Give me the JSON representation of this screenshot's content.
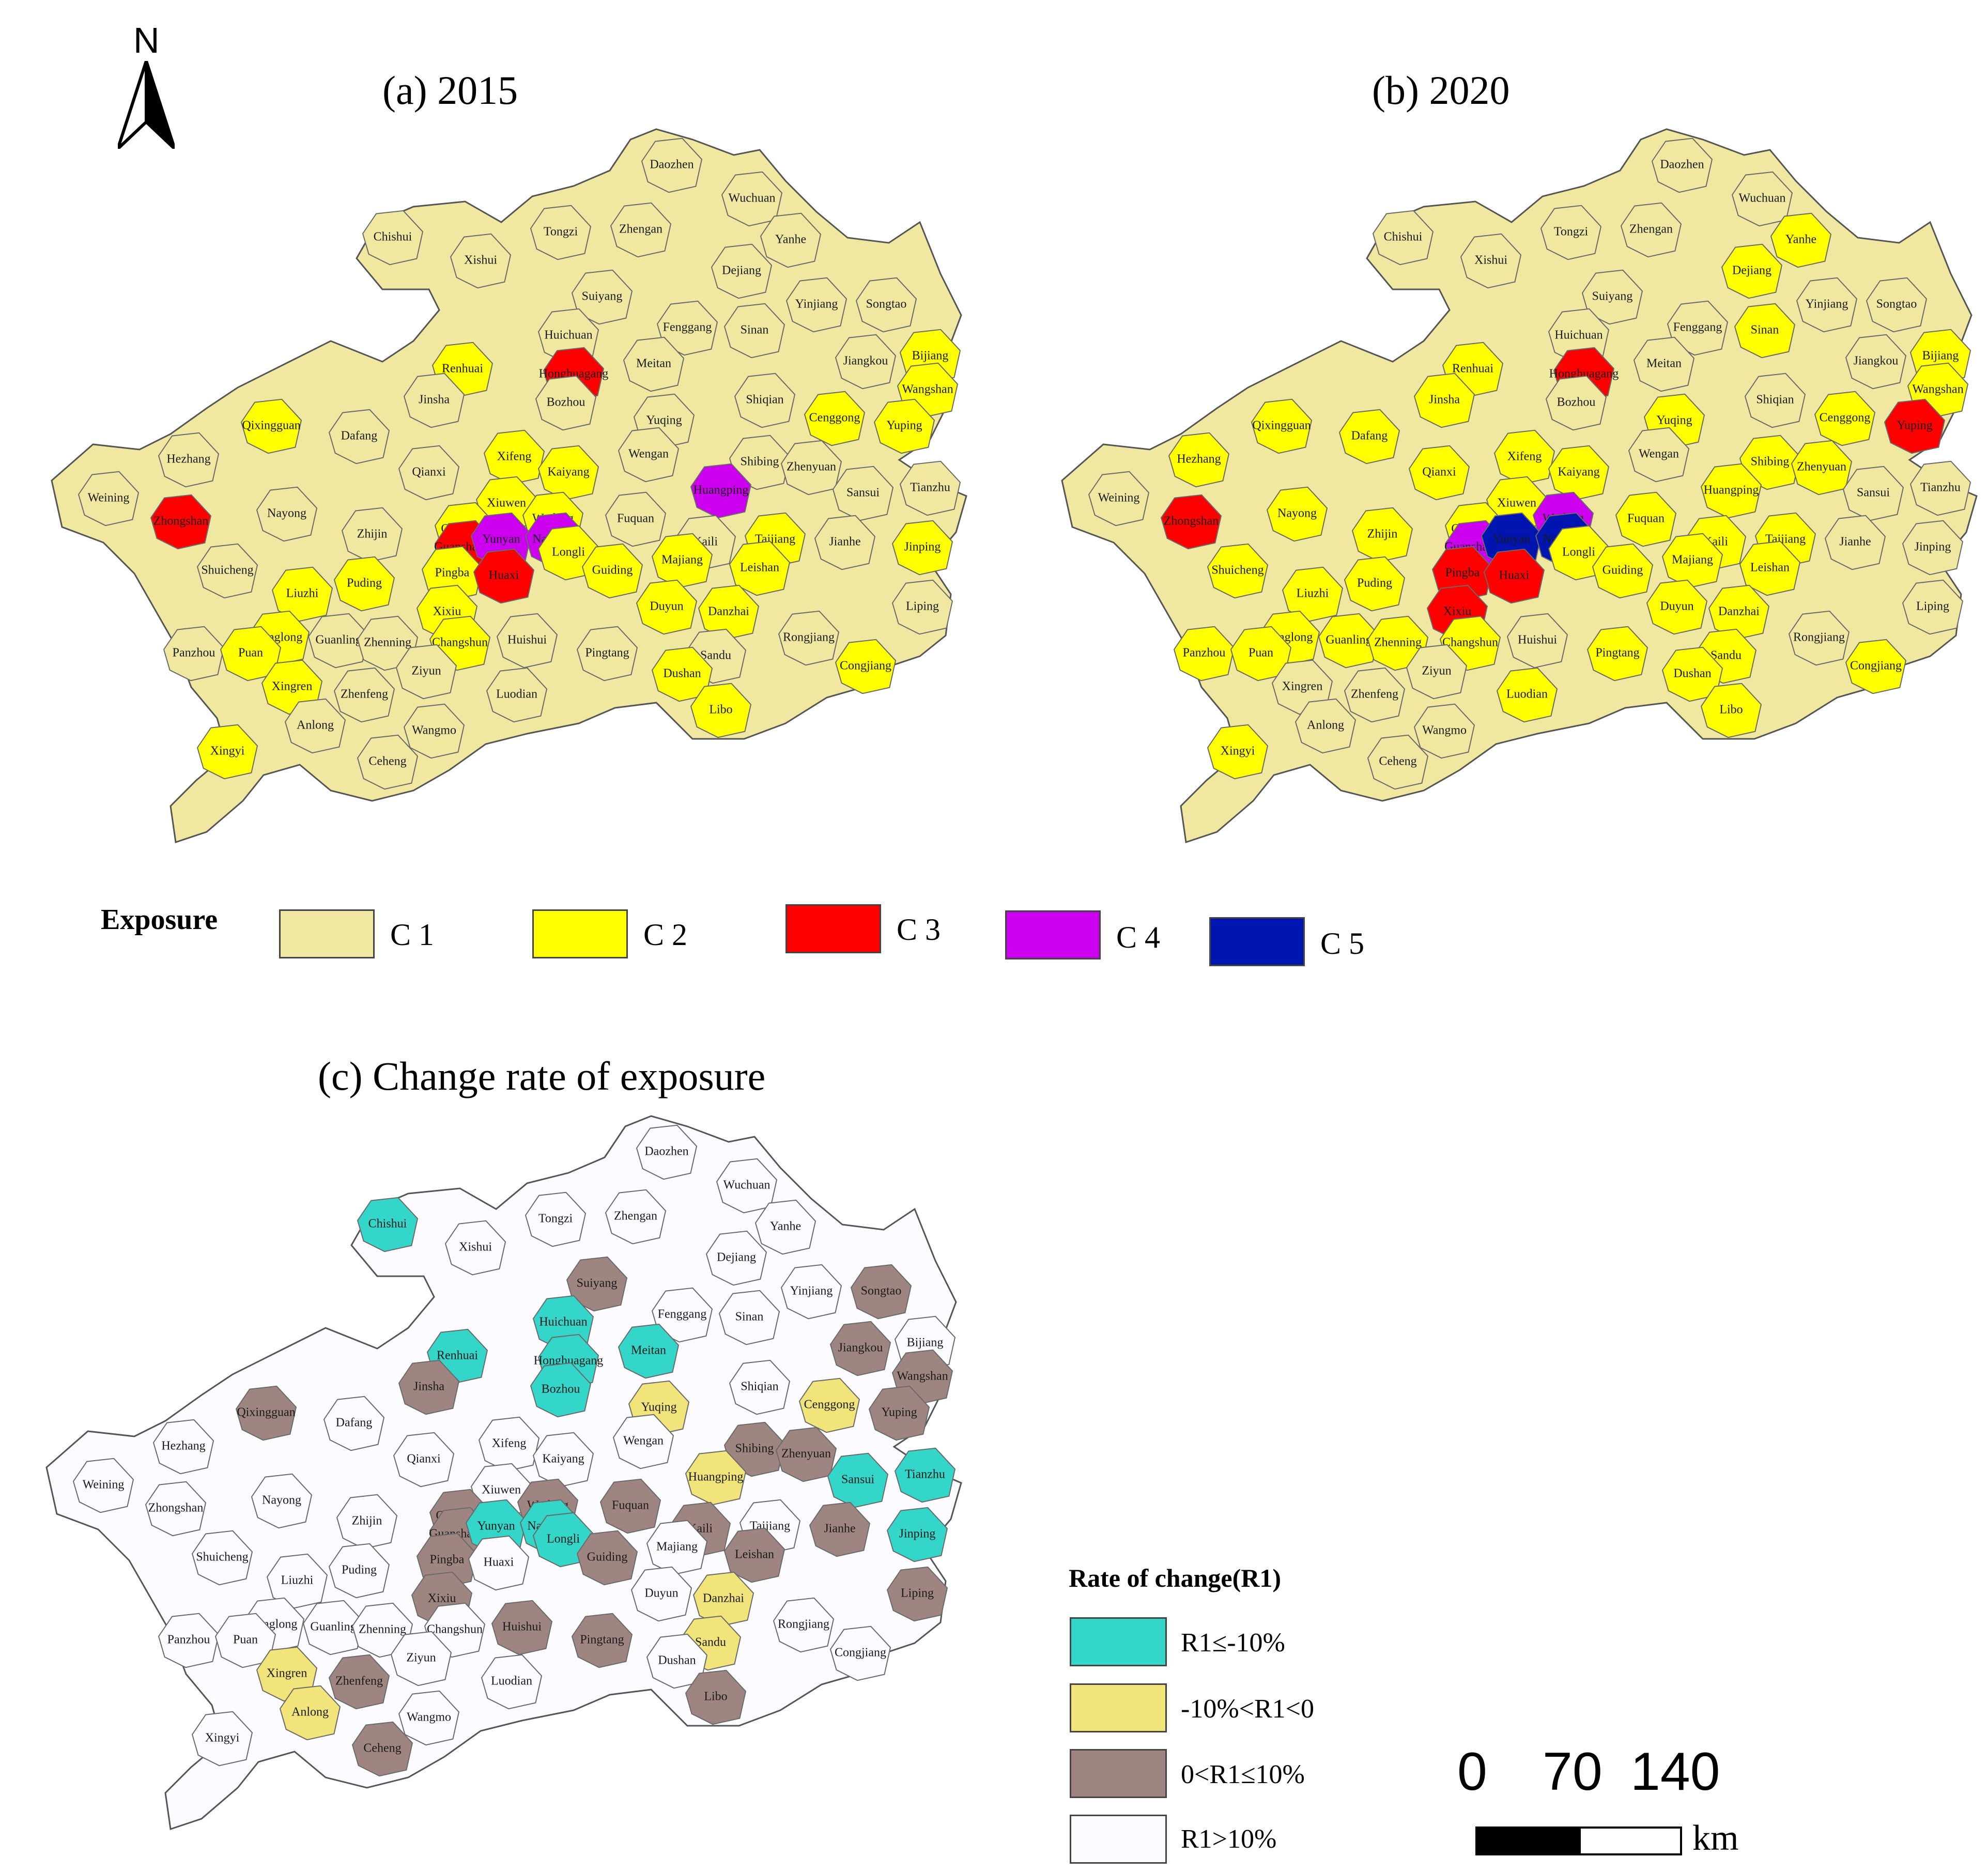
{
  "north_arrow": {
    "label": "N",
    "icon": "north-arrow-icon"
  },
  "maps": [
    {
      "id": "2015",
      "title": "(a) 2015"
    },
    {
      "id": "2020",
      "title": "(b) 2020"
    },
    {
      "id": "change",
      "title": "(c) Change rate of exposure"
    }
  ],
  "exposure_legend": {
    "title": "Exposure",
    "classes": [
      {
        "label": "C 1",
        "color": "#f0e8a0"
      },
      {
        "label": "C 2",
        "color": "#ffff00"
      },
      {
        "label": "C 3",
        "color": "#ff0000"
      },
      {
        "label": "C 4",
        "color": "#cc00ee"
      },
      {
        "label": "C 5",
        "color": "#0015b0"
      }
    ]
  },
  "change_legend": {
    "title": "Rate of change(R1)",
    "classes": [
      {
        "label": "R1≤-10%",
        "color": "#33d6c8"
      },
      {
        "label": "-10%<R1<0",
        "color": "#f0e47a"
      },
      {
        "label": "0<R1≤10%",
        "color": "#9e8582"
      },
      {
        "label": "R1>10%",
        "color": "#fcfbff"
      }
    ]
  },
  "scale_bar": {
    "ticks": [
      "0",
      "70",
      "140"
    ],
    "unit": "km"
  },
  "counties": [
    "Daozhen",
    "Wuchuan",
    "Chishui",
    "Xishui",
    "Tongzi",
    "Zhengan",
    "Yanhe",
    "Dejiang",
    "Suiyang",
    "Yinjiang",
    "Songtao",
    "Huichuan",
    "Fenggang",
    "Sinan",
    "Renhuai",
    "Honghuagang",
    "Meitan",
    "Jiangkou",
    "Bijiang",
    "Jinsha",
    "Bozhou",
    "Shiqian",
    "Wangshan",
    "Qixingguan",
    "Yuqing",
    "Cenggong",
    "Yuping",
    "Hezhang",
    "Dafang",
    "Xifeng",
    "Wengan",
    "Shibing",
    "Zhenyuan",
    "Weining",
    "Qianxi",
    "Kaiyang",
    "Huangping",
    "Sansui",
    "Tianzhu",
    "Nayong",
    "Xiuwen",
    "Wudang",
    "Fuquan",
    "Zhongshan",
    "Zhijin",
    "Qingzhen",
    "Guanshanhu",
    "Yunyan",
    "Nanming",
    "Longli",
    "Kaili",
    "Taijiang",
    "Jianhe",
    "Jinping",
    "Shuicheng",
    "Pingba",
    "Huaxi",
    "Xixiu",
    "Guiding",
    "Majiang",
    "Leishan",
    "Liuzhi",
    "Puding",
    "Duyun",
    "Danzhai",
    "Liping",
    "Changshun",
    "Huishui",
    "Rongjiang",
    "Panzhou",
    "Qinglong",
    "Guanling",
    "Zhenning",
    "Pingtang",
    "Sandu",
    "Congjiang",
    "Puan",
    "Ziyun",
    "Dushan",
    "Xingren",
    "Zhenfeng",
    "Luodian",
    "Libo",
    "Anlong",
    "Wangmo",
    "Xingyi",
    "Ceheng"
  ]
}
